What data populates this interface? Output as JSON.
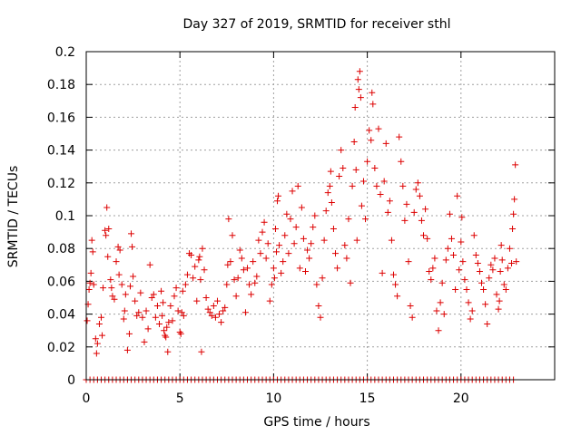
{
  "chart_data": {
    "type": "scatter",
    "title": "Day 327 of 2019, SRMTID for receiver sthl",
    "xlabel": "GPS time / hours",
    "ylabel": "SRMTID / TECUs",
    "xlim": [
      0,
      25
    ],
    "ylim": [
      0,
      0.2
    ],
    "xticks": [
      0,
      5,
      10,
      15,
      20
    ],
    "xtick_labels": [
      "0",
      "5",
      "10",
      "15",
      "20"
    ],
    "yticks": [
      0,
      0.02,
      0.04,
      0.06,
      0.08,
      0.1,
      0.12,
      0.14,
      0.16,
      0.18,
      0.2
    ],
    "ytick_labels": [
      "0",
      "0.02",
      "0.04",
      "0.06",
      "0.08",
      "0.1",
      "0.12",
      "0.14",
      "0.16",
      "0.18",
      "0.2"
    ],
    "grid": true,
    "marker": "+",
    "color": "#dd0000",
    "series": [
      {
        "name": "SRMTID",
        "points": [
          [
            0.05,
            0.036
          ],
          [
            0.1,
            0.046
          ],
          [
            0.15,
            0.055
          ],
          [
            0.2,
            0.059
          ],
          [
            0.25,
            0.065
          ],
          [
            0.3,
            0.085
          ],
          [
            0.35,
            0.078
          ],
          [
            0.4,
            0.058
          ],
          [
            0.5,
            0.025
          ],
          [
            0.55,
            0.016
          ],
          [
            0.6,
            0.022
          ],
          [
            0.7,
            0.034
          ],
          [
            0.8,
            0.038
          ],
          [
            0.85,
            0.027
          ],
          [
            0.9,
            0.056
          ],
          [
            1.0,
            0.091
          ],
          [
            1.05,
            0.088
          ],
          [
            1.1,
            0.105
          ],
          [
            1.15,
            0.075
          ],
          [
            1.2,
            0.092
          ],
          [
            1.3,
            0.061
          ],
          [
            1.35,
            0.056
          ],
          [
            1.4,
            0.051
          ],
          [
            1.5,
            0.049
          ],
          [
            1.6,
            0.072
          ],
          [
            1.7,
            0.081
          ],
          [
            1.75,
            0.064
          ],
          [
            1.8,
            0.079
          ],
          [
            1.9,
            0.058
          ],
          [
            2.0,
            0.037
          ],
          [
            2.05,
            0.042
          ],
          [
            2.1,
            0.052
          ],
          [
            2.2,
            0.018
          ],
          [
            2.3,
            0.028
          ],
          [
            2.35,
            0.057
          ],
          [
            2.4,
            0.089
          ],
          [
            2.45,
            0.081
          ],
          [
            2.5,
            0.063
          ],
          [
            2.6,
            0.048
          ],
          [
            2.7,
            0.039
          ],
          [
            2.8,
            0.041
          ],
          [
            2.9,
            0.053
          ],
          [
            3.0,
            0.038
          ],
          [
            3.1,
            0.023
          ],
          [
            3.2,
            0.042
          ],
          [
            3.3,
            0.031
          ],
          [
            3.4,
            0.07
          ],
          [
            3.5,
            0.05
          ],
          [
            3.6,
            0.052
          ],
          [
            3.7,
            0.038
          ],
          [
            3.8,
            0.045
          ],
          [
            3.9,
            0.034
          ],
          [
            4.0,
            0.054
          ],
          [
            4.05,
            0.039
          ],
          [
            4.1,
            0.047
          ],
          [
            4.15,
            0.03
          ],
          [
            4.2,
            0.027
          ],
          [
            4.25,
            0.026
          ],
          [
            4.3,
            0.032
          ],
          [
            4.35,
            0.017
          ],
          [
            4.4,
            0.035
          ],
          [
            4.5,
            0.045
          ],
          [
            4.6,
            0.036
          ],
          [
            4.7,
            0.051
          ],
          [
            4.8,
            0.056
          ],
          [
            4.9,
            0.042
          ],
          [
            5.0,
            0.029
          ],
          [
            5.05,
            0.028
          ],
          [
            5.1,
            0.041
          ],
          [
            5.15,
            0.054
          ],
          [
            5.2,
            0.039
          ],
          [
            5.3,
            0.058
          ],
          [
            5.4,
            0.064
          ],
          [
            5.5,
            0.077
          ],
          [
            5.6,
            0.076
          ],
          [
            5.7,
            0.062
          ],
          [
            5.8,
            0.069
          ],
          [
            5.9,
            0.048
          ],
          [
            6.0,
            0.073
          ],
          [
            6.05,
            0.075
          ],
          [
            6.1,
            0.061
          ],
          [
            6.15,
            0.017
          ],
          [
            6.2,
            0.08
          ],
          [
            6.3,
            0.067
          ],
          [
            6.4,
            0.05
          ],
          [
            6.5,
            0.043
          ],
          [
            6.6,
            0.041
          ],
          [
            6.7,
            0.039
          ],
          [
            6.8,
            0.045
          ],
          [
            6.9,
            0.038
          ],
          [
            7.0,
            0.048
          ],
          [
            7.1,
            0.04
          ],
          [
            7.2,
            0.035
          ],
          [
            7.3,
            0.042
          ],
          [
            7.4,
            0.044
          ],
          [
            7.5,
            0.058
          ],
          [
            7.55,
            0.07
          ],
          [
            7.6,
            0.098
          ],
          [
            7.7,
            0.072
          ],
          [
            7.8,
            0.088
          ],
          [
            7.9,
            0.061
          ],
          [
            8.0,
            0.051
          ],
          [
            8.1,
            0.062
          ],
          [
            8.2,
            0.079
          ],
          [
            8.3,
            0.074
          ],
          [
            8.4,
            0.067
          ],
          [
            8.5,
            0.041
          ],
          [
            8.6,
            0.068
          ],
          [
            8.7,
            0.058
          ],
          [
            8.8,
            0.052
          ],
          [
            8.9,
            0.072
          ],
          [
            9.0,
            0.059
          ],
          [
            9.1,
            0.063
          ],
          [
            9.2,
            0.085
          ],
          [
            9.3,
            0.077
          ],
          [
            9.4,
            0.09
          ],
          [
            9.5,
            0.096
          ],
          [
            9.6,
            0.074
          ],
          [
            9.7,
            0.083
          ],
          [
            9.8,
            0.048
          ],
          [
            9.9,
            0.058
          ],
          [
            10.0,
            0.068
          ],
          [
            10.05,
            0.062
          ],
          [
            10.1,
            0.092
          ],
          [
            10.15,
            0.078
          ],
          [
            10.2,
            0.109
          ],
          [
            10.25,
            0.112
          ],
          [
            10.3,
            0.082
          ],
          [
            10.4,
            0.065
          ],
          [
            10.5,
            0.072
          ],
          [
            10.6,
            0.088
          ],
          [
            10.7,
            0.101
          ],
          [
            10.8,
            0.077
          ],
          [
            10.9,
            0.098
          ],
          [
            11.0,
            0.115
          ],
          [
            11.1,
            0.083
          ],
          [
            11.2,
            0.093
          ],
          [
            11.3,
            0.118
          ],
          [
            11.4,
            0.068
          ],
          [
            11.5,
            0.105
          ],
          [
            11.6,
            0.086
          ],
          [
            11.7,
            0.066
          ],
          [
            11.8,
            0.079
          ],
          [
            11.9,
            0.074
          ],
          [
            12.0,
            0.083
          ],
          [
            12.1,
            0.093
          ],
          [
            12.2,
            0.1
          ],
          [
            12.3,
            0.058
          ],
          [
            12.4,
            0.045
          ],
          [
            12.5,
            0.038
          ],
          [
            12.6,
            0.062
          ],
          [
            12.7,
            0.085
          ],
          [
            12.8,
            0.103
          ],
          [
            12.9,
            0.114
          ],
          [
            13.0,
            0.118
          ],
          [
            13.05,
            0.127
          ],
          [
            13.1,
            0.108
          ],
          [
            13.2,
            0.092
          ],
          [
            13.3,
            0.077
          ],
          [
            13.4,
            0.068
          ],
          [
            13.5,
            0.124
          ],
          [
            13.6,
            0.14
          ],
          [
            13.7,
            0.129
          ],
          [
            13.8,
            0.082
          ],
          [
            13.9,
            0.074
          ],
          [
            14.0,
            0.098
          ],
          [
            14.1,
            0.059
          ],
          [
            14.2,
            0.118
          ],
          [
            14.3,
            0.145
          ],
          [
            14.35,
            0.166
          ],
          [
            14.4,
            0.128
          ],
          [
            14.45,
            0.085
          ],
          [
            14.5,
            0.183
          ],
          [
            14.55,
            0.177
          ],
          [
            14.6,
            0.188
          ],
          [
            14.65,
            0.172
          ],
          [
            14.7,
            0.106
          ],
          [
            14.8,
            0.121
          ],
          [
            14.9,
            0.098
          ],
          [
            15.0,
            0.133
          ],
          [
            15.1,
            0.152
          ],
          [
            15.2,
            0.146
          ],
          [
            15.25,
            0.175
          ],
          [
            15.3,
            0.168
          ],
          [
            15.4,
            0.129
          ],
          [
            15.5,
            0.118
          ],
          [
            15.6,
            0.153
          ],
          [
            15.7,
            0.113
          ],
          [
            15.8,
            0.065
          ],
          [
            15.9,
            0.121
          ],
          [
            16.0,
            0.144
          ],
          [
            16.1,
            0.102
          ],
          [
            16.2,
            0.109
          ],
          [
            16.3,
            0.085
          ],
          [
            16.4,
            0.064
          ],
          [
            16.5,
            0.058
          ],
          [
            16.6,
            0.051
          ],
          [
            16.7,
            0.148
          ],
          [
            16.8,
            0.133
          ],
          [
            16.9,
            0.118
          ],
          [
            17.0,
            0.097
          ],
          [
            17.1,
            0.107
          ],
          [
            17.2,
            0.072
          ],
          [
            17.3,
            0.045
          ],
          [
            17.4,
            0.038
          ],
          [
            17.5,
            0.102
          ],
          [
            17.6,
            0.116
          ],
          [
            17.7,
            0.12
          ],
          [
            17.8,
            0.112
          ],
          [
            17.9,
            0.097
          ],
          [
            18.0,
            0.088
          ],
          [
            18.1,
            0.104
          ],
          [
            18.2,
            0.086
          ],
          [
            18.3,
            0.066
          ],
          [
            18.4,
            0.061
          ],
          [
            18.5,
            0.068
          ],
          [
            18.6,
            0.074
          ],
          [
            18.7,
            0.042
          ],
          [
            18.8,
            0.03
          ],
          [
            18.9,
            0.047
          ],
          [
            19.0,
            0.059
          ],
          [
            19.1,
            0.04
          ],
          [
            19.2,
            0.073
          ],
          [
            19.3,
            0.08
          ],
          [
            19.4,
            0.101
          ],
          [
            19.5,
            0.086
          ],
          [
            19.6,
            0.076
          ],
          [
            19.7,
            0.055
          ],
          [
            19.8,
            0.112
          ],
          [
            19.9,
            0.067
          ],
          [
            20.0,
            0.084
          ],
          [
            20.05,
            0.099
          ],
          [
            20.1,
            0.072
          ],
          [
            20.2,
            0.061
          ],
          [
            20.3,
            0.055
          ],
          [
            20.4,
            0.047
          ],
          [
            20.5,
            0.037
          ],
          [
            20.6,
            0.042
          ],
          [
            20.7,
            0.088
          ],
          [
            20.8,
            0.076
          ],
          [
            20.9,
            0.071
          ],
          [
            21.0,
            0.066
          ],
          [
            21.1,
            0.059
          ],
          [
            21.2,
            0.055
          ],
          [
            21.3,
            0.046
          ],
          [
            21.4,
            0.034
          ],
          [
            21.5,
            0.062
          ],
          [
            21.6,
            0.07
          ],
          [
            21.7,
            0.067
          ],
          [
            21.8,
            0.074
          ],
          [
            21.9,
            0.052
          ],
          [
            22.0,
            0.043
          ],
          [
            22.05,
            0.048
          ],
          [
            22.1,
            0.066
          ],
          [
            22.15,
            0.082
          ],
          [
            22.2,
            0.073
          ],
          [
            22.3,
            0.058
          ],
          [
            22.4,
            0.055
          ],
          [
            22.5,
            0.068
          ],
          [
            22.6,
            0.08
          ],
          [
            22.7,
            0.071
          ],
          [
            22.75,
            0.092
          ],
          [
            22.8,
            0.101
          ],
          [
            22.85,
            0.11
          ],
          [
            22.9,
            0.131
          ],
          [
            22.95,
            0.072
          ]
        ],
        "zero_line": {
          "x_start": 0,
          "x_end": 22.8,
          "step": 0.2,
          "y": 0
        }
      }
    ]
  }
}
